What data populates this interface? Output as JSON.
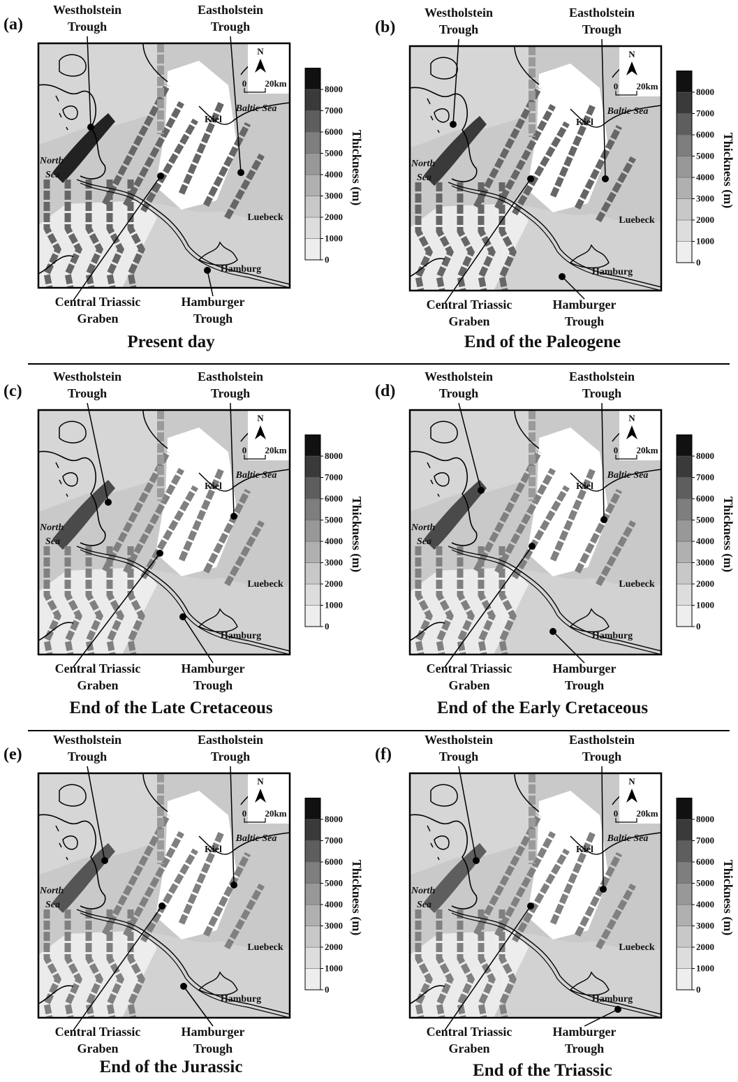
{
  "panels": [
    {
      "letter": "(a)",
      "caption": "Present day"
    },
    {
      "letter": "(b)",
      "caption": "End of the Paleogene"
    },
    {
      "letter": "(c)",
      "caption": "End of the Late Cretaceous"
    },
    {
      "letter": "(d)",
      "caption": "End of the Early Cretaceous"
    },
    {
      "letter": "(e)",
      "caption": "End of the Jurassic"
    },
    {
      "letter": "(f)",
      "caption": "End of the Triassic"
    }
  ],
  "callouts": {
    "westholstein": [
      "Westholstein",
      "Trough"
    ],
    "eastholstein": [
      "Eastholstein",
      "Trough"
    ],
    "central": [
      "Central Triassic",
      "Graben"
    ],
    "hamburger": [
      "Hamburger",
      "Trough"
    ]
  },
  "places": {
    "baltic": "Baltic Sea",
    "kiel": "Kiel",
    "north_sea": [
      "North",
      "Sea"
    ],
    "luebeck": "Luebeck",
    "hamburg": "Hamburg"
  },
  "scale_bar": {
    "north": "N",
    "start": 0,
    "end": "20km"
  },
  "legend": {
    "title": "Thickness (m)",
    "ticks": [
      0,
      1000,
      2000,
      3000,
      4000,
      5000,
      6000,
      7000,
      8000
    ]
  }
}
